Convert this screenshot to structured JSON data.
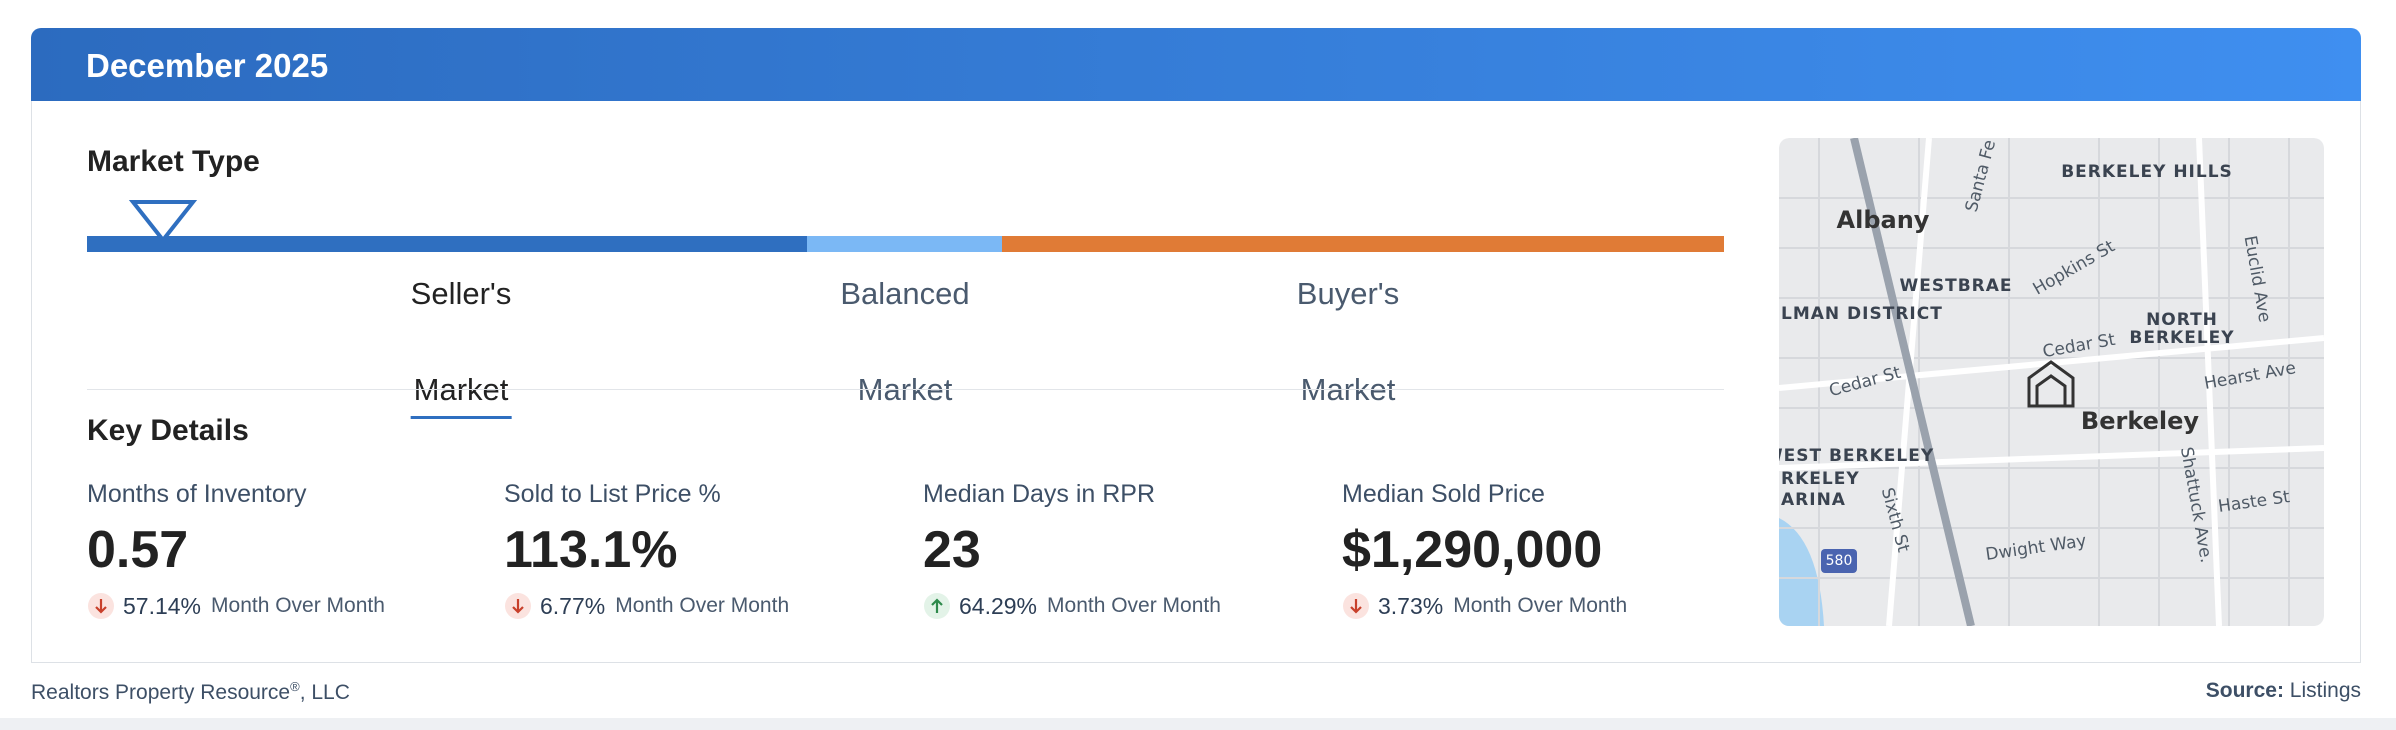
{
  "header": {
    "title": "December 2025"
  },
  "market_type": {
    "title": "Market Type",
    "segments": [
      {
        "label": [
          "Seller's",
          "Market"
        ],
        "color": "#2f6fc0",
        "selected": true
      },
      {
        "label": [
          "Balanced",
          "Market"
        ],
        "color": "#7bb8f5",
        "selected": false
      },
      {
        "label": [
          "Buyer's",
          "Market"
        ],
        "color": "#e07b36",
        "selected": false
      }
    ]
  },
  "key_details": {
    "title": "Key Details",
    "metrics": [
      {
        "label": "Months of Inventory",
        "value": "0.57",
        "change": "57.14%",
        "direction": "down",
        "change_label": "Month Over Month"
      },
      {
        "label": "Sold to List Price %",
        "value": "113.1%",
        "change": "6.77%",
        "direction": "down",
        "change_label": "Month Over Month"
      },
      {
        "label": "Median Days in RPR",
        "value": "23",
        "change": "64.29%",
        "direction": "up",
        "change_label": "Month Over Month"
      },
      {
        "label": "Median Sold Price",
        "value": "$1,290,000",
        "change": "3.73%",
        "direction": "down",
        "change_label": "Month Over Month"
      }
    ]
  },
  "map": {
    "labels": [
      "BERKELEY HILLS",
      "Albany",
      "Santa Fe",
      "WESTBRAE",
      "Hopkins St",
      "Euclid Ave",
      "LMAN DISTRICT",
      "Cedar St",
      "NORTH",
      "BERKELEY",
      "Hearst Ave",
      "Cedar St",
      "Berkeley",
      "WEST BERKELEY",
      "RKELEY",
      "ARINA",
      "Sixth St",
      "Shattuck Ave.",
      "Haste St",
      "Dwight Way",
      "580"
    ]
  },
  "footer": {
    "company": "Realtors Property Resource",
    "registered": "®",
    "company_suffix": ", LLC",
    "source_label": "Source:",
    "source": "Listings"
  }
}
